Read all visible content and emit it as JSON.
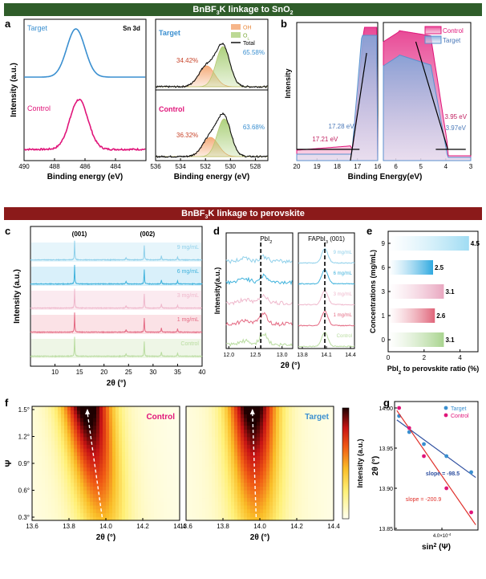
{
  "banners": {
    "top": "BnBF3K linkage to SnO2",
    "middle": "BnBF3K linkage to perovskite"
  },
  "colors": {
    "top_banner": "#2f5d2a",
    "middle_banner": "#8b1a1a",
    "target": "#3a8fd0",
    "control": "#e0157a"
  },
  "panel_labels": {
    "a": "a",
    "b": "b",
    "c": "c",
    "d": "d",
    "e": "e",
    "f": "f",
    "g": "g"
  },
  "chart_data": [
    {
      "id": "a-sn3d",
      "type": "line",
      "annotation": "Sn 3d",
      "xlabel": "Binding energy (eV)",
      "ylabel": "Intensity (a.u.)",
      "xlim": [
        490,
        482
      ],
      "xticks": [
        "490",
        "488",
        "486",
        "484"
      ],
      "series": [
        {
          "name": "Target",
          "center": 486.6,
          "fwhm": 1.4,
          "color": "#3a8fd0"
        },
        {
          "name": "Control",
          "center": 486.4,
          "fwhm": 1.4,
          "color": "#e0157a"
        }
      ]
    },
    {
      "id": "a-o1s",
      "type": "area",
      "xlabel": "Binding energy (eV)",
      "xlim": [
        536,
        527
      ],
      "xticks": [
        "536",
        "534",
        "532",
        "530",
        "528"
      ],
      "legend": [
        "OH",
        "OL",
        "Total"
      ],
      "series": [
        {
          "name": "Target",
          "OH_percent": "34.42%",
          "OL_percent": "65.58%",
          "OH_center": 531.9,
          "OL_center": 530.6
        },
        {
          "name": "Control",
          "OH_percent": "36.32%",
          "OL_percent": "63.68%",
          "OH_center": 531.6,
          "OL_center": 530.5
        }
      ]
    },
    {
      "id": "b",
      "type": "area",
      "xlabel": "Binding Energy(eV)",
      "ylabel": "Intensity",
      "xticks": [
        "20",
        "19",
        "18",
        "17",
        "16",
        "6",
        "5",
        "4",
        "3"
      ],
      "legend": [
        "Control",
        "Target"
      ],
      "annotations": [
        "17.28 eV",
        "17.21 eV",
        "3.95 eV",
        "3.97eV"
      ]
    },
    {
      "id": "c",
      "type": "line",
      "xlabel": "2θ (°)",
      "ylabel": "Intensity (a.u.)",
      "xlim": [
        5,
        40
      ],
      "xticks": [
        "10",
        "15",
        "20",
        "25",
        "30",
        "35",
        "40"
      ],
      "peaks": [
        "(001)",
        "(002)"
      ],
      "series": [
        "9 mg/mL",
        "6 mg/mL",
        "3 mg/mL",
        "1 mg/mL",
        "Control"
      ]
    },
    {
      "id": "d",
      "type": "line",
      "xlabel": "2θ (°)",
      "ylabel": "Intensity(a.u.)",
      "left_title": "PbI2",
      "right_title": "FAPbI3 (001)",
      "left_xticks": [
        "12.0",
        "12.5",
        "13.0"
      ],
      "right_xticks": [
        "13.8",
        "14.1",
        "14.4"
      ],
      "series": [
        "9 mg/mL",
        "6 mg/mL",
        "3 mg/mL",
        "1 mg/mL",
        "Control"
      ]
    },
    {
      "id": "e",
      "type": "bar",
      "orientation": "horizontal",
      "categories": [
        "9",
        "6",
        "3",
        "1",
        "0"
      ],
      "values": [
        4.5,
        2.5,
        3.1,
        2.6,
        3.1
      ],
      "xlabel": "PbI2 to perovskite ratio (%)",
      "ylabel": "Concentrations (mg/mL)",
      "xticks": [
        "0",
        "2",
        "4"
      ],
      "xlim": [
        0,
        5
      ]
    },
    {
      "id": "f",
      "type": "heatmap",
      "titles": [
        "Control",
        "Target"
      ],
      "xlabel": "2θ (°)",
      "ylabel": "Ψ",
      "xticks": [
        "13.6",
        "13.8",
        "14.0",
        "14.2",
        "14.4"
      ],
      "yticks": [
        "0.3°",
        "0.6°",
        "0.9°",
        "1.2°",
        "1.5°"
      ],
      "colorbar_label": "Intensity (a.u.)",
      "peak_shift": [
        {
          "panel": "Control",
          "from_x": 13.98,
          "to_x": 13.9
        },
        {
          "panel": "Target",
          "from_x": 13.98,
          "to_x": 13.96
        }
      ]
    },
    {
      "id": "g",
      "type": "scatter",
      "xlabel": "sin2 (Ψ)",
      "ylabel": "2θ (°)",
      "ylim": [
        13.85,
        14.0
      ],
      "yticks": [
        "14.00",
        "13.95",
        "13.90",
        "13.85"
      ],
      "xticks": [
        "4.0×10-4"
      ],
      "xlim": [
        -2e-05,
        0.00072
      ],
      "series": [
        {
          "name": "Target",
          "slope": "slope = -98.5",
          "x": [
            2e-05,
            0.00011,
            0.00024,
            0.00044,
            0.00066
          ],
          "y": [
            13.99,
            13.97,
            13.955,
            13.94,
            13.92
          ]
        },
        {
          "name": "Control",
          "slope": "slope = -200.9",
          "x": [
            2e-05,
            0.00011,
            0.00024,
            0.00044,
            0.00066
          ],
          "y": [
            14.0,
            13.975,
            13.94,
            13.9,
            13.87
          ]
        }
      ]
    }
  ]
}
